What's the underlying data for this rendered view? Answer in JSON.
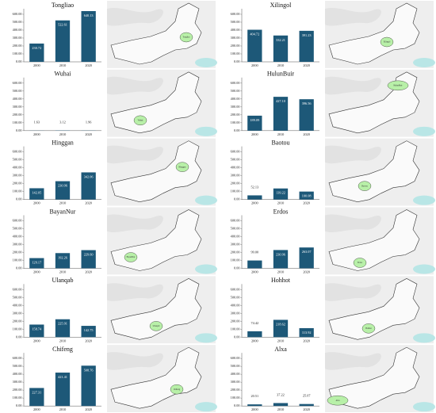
{
  "chart_data": [
    {
      "type": "bar",
      "title": "Tongliao",
      "categories": [
        "2000",
        "2010",
        "2020"
      ],
      "values": [
        230.72,
        522.61,
        640.13
      ],
      "value_labels": [
        "230.72",
        "522.61",
        "640.13"
      ],
      "color": "#1d5878",
      "ylim": [
        0,
        650
      ],
      "yticks": [
        {
          "value": 0,
          "label": "0.00"
        },
        {
          "value": 100,
          "label": "100.00"
        },
        {
          "value": 200,
          "label": "200.00"
        },
        {
          "value": 300,
          "label": "300.00"
        },
        {
          "value": 400,
          "label": "400.00"
        },
        {
          "value": 500,
          "label": "500.00"
        },
        {
          "value": 600,
          "label": "600.00"
        }
      ]
    },
    {
      "type": "bar",
      "title": "Xilingol",
      "categories": [
        "2000",
        "2010",
        "2020"
      ],
      "values": [
        404.72,
        332.21,
        391.23
      ],
      "value_labels": [
        "404.72",
        "332.21",
        "391.23"
      ],
      "color": "#1d5878",
      "ylim": [
        0,
        650
      ],
      "yticks": [
        {
          "value": 0,
          "label": "0.00"
        },
        {
          "value": 100,
          "label": "100.00"
        },
        {
          "value": 200,
          "label": "200.00"
        },
        {
          "value": 300,
          "label": "300.00"
        },
        {
          "value": 400,
          "label": "400.00"
        },
        {
          "value": 500,
          "label": "500.00"
        },
        {
          "value": 600,
          "label": "600.00"
        }
      ]
    },
    {
      "type": "bar",
      "title": "Wuhai",
      "categories": [
        "2000",
        "2010",
        "2020"
      ],
      "values": [
        1.63,
        3.12,
        1.96
      ],
      "value_labels": [
        "1.63",
        "3.12",
        "1.96"
      ],
      "color": "#1d5878",
      "ylim": [
        0,
        650
      ],
      "yticks": [
        {
          "value": 0,
          "label": "0.00"
        },
        {
          "value": 100,
          "label": "100.00"
        },
        {
          "value": 200,
          "label": "200.00"
        },
        {
          "value": 300,
          "label": "300.00"
        },
        {
          "value": 400,
          "label": "400.00"
        },
        {
          "value": 500,
          "label": "500.00"
        },
        {
          "value": 600,
          "label": "600.00"
        }
      ]
    },
    {
      "type": "bar",
      "title": "HulunBuir",
      "categories": [
        "2000",
        "2010",
        "2020"
      ],
      "values": [
        189.09,
        427.1,
        396.56
      ],
      "value_labels": [
        "189.09",
        "427.10",
        "396.56"
      ],
      "color": "#1d5878",
      "ylim": [
        0,
        650
      ],
      "yticks": [
        {
          "value": 0,
          "label": "0.00"
        },
        {
          "value": 100,
          "label": "100.00"
        },
        {
          "value": 200,
          "label": "200.00"
        },
        {
          "value": 300,
          "label": "300.00"
        },
        {
          "value": 400,
          "label": "400.00"
        },
        {
          "value": 500,
          "label": "500.00"
        },
        {
          "value": 600,
          "label": "600.00"
        }
      ]
    },
    {
      "type": "bar",
      "title": "Hinggan",
      "categories": [
        "2000",
        "2010",
        "2020"
      ],
      "values": [
        142.05,
        230.96,
        342.06
      ],
      "value_labels": [
        "142.05",
        "230.96",
        "342.06"
      ],
      "color": "#1d5878",
      "ylim": [
        0,
        650
      ],
      "yticks": [
        {
          "value": 0,
          "label": "0.00"
        },
        {
          "value": 100,
          "label": "100.00"
        },
        {
          "value": 200,
          "label": "200.00"
        },
        {
          "value": 300,
          "label": "300.00"
        },
        {
          "value": 400,
          "label": "400.00"
        },
        {
          "value": 500,
          "label": "500.00"
        },
        {
          "value": 600,
          "label": "600.00"
        }
      ]
    },
    {
      "type": "bar",
      "title": "Baotou",
      "categories": [
        "2000",
        "2010",
        "2020"
      ],
      "values": [
        52.13,
        139.22,
        100.08
      ],
      "value_labels": [
        "52.13",
        "139.22",
        "100.08"
      ],
      "color": "#1d5878",
      "ylim": [
        0,
        650
      ],
      "yticks": [
        {
          "value": 0,
          "label": "0.00"
        },
        {
          "value": 100,
          "label": "100.00"
        },
        {
          "value": 200,
          "label": "200.00"
        },
        {
          "value": 300,
          "label": "300.00"
        },
        {
          "value": 400,
          "label": "400.00"
        },
        {
          "value": 500,
          "label": "500.00"
        },
        {
          "value": 600,
          "label": "600.00"
        }
      ]
    },
    {
      "type": "bar",
      "title": "BayanNur",
      "categories": [
        "2000",
        "2010",
        "2020"
      ],
      "values": [
        129.17,
        192.26,
        229.6
      ],
      "value_labels": [
        "129.17",
        "192.26",
        "229.60"
      ],
      "color": "#1d5878",
      "ylim": [
        0,
        650
      ],
      "yticks": [
        {
          "value": 0,
          "label": "0.00"
        },
        {
          "value": 100,
          "label": "100.00"
        },
        {
          "value": 200,
          "label": "200.00"
        },
        {
          "value": 300,
          "label": "300.00"
        },
        {
          "value": 400,
          "label": "400.00"
        },
        {
          "value": 500,
          "label": "500.00"
        },
        {
          "value": 600,
          "label": "600.00"
        }
      ]
    },
    {
      "type": "bar",
      "title": "Erdos",
      "categories": [
        "2000",
        "2010",
        "2020"
      ],
      "values": [
        99,
        230.96,
        263.07
      ],
      "value_labels": [
        "99.00",
        "230.96",
        "263.07"
      ],
      "color": "#1d5878",
      "ylim": [
        0,
        650
      ],
      "yticks": [
        {
          "value": 0,
          "label": "0.00"
        },
        {
          "value": 100,
          "label": "100.00"
        },
        {
          "value": 200,
          "label": "200.00"
        },
        {
          "value": 300,
          "label": "300.00"
        },
        {
          "value": 400,
          "label": "400.00"
        },
        {
          "value": 500,
          "label": "500.00"
        },
        {
          "value": 600,
          "label": "600.00"
        }
      ]
    },
    {
      "type": "bar",
      "title": "Ulanqab",
      "categories": [
        "2000",
        "2010",
        "2020"
      ],
      "values": [
        158.74,
        225.91,
        142.75
      ],
      "value_labels": [
        "158.74",
        "225.91",
        "142.75"
      ],
      "color": "#1d5878",
      "ylim": [
        0,
        650
      ],
      "yticks": [
        {
          "value": 0,
          "label": "0.00"
        },
        {
          "value": 100,
          "label": "100.00"
        },
        {
          "value": 200,
          "label": "200.00"
        },
        {
          "value": 300,
          "label": "300.00"
        },
        {
          "value": 400,
          "label": "400.00"
        },
        {
          "value": 500,
          "label": "500.00"
        },
        {
          "value": 600,
          "label": "600.00"
        }
      ]
    },
    {
      "type": "bar",
      "title": "Hohhot",
      "categories": [
        "2000",
        "2010",
        "2020"
      ],
      "values": [
        74.42,
        218.62,
        113.92
      ],
      "value_labels": [
        "74.42",
        "218.62",
        "113.92"
      ],
      "color": "#1d5878",
      "ylim": [
        0,
        650
      ],
      "yticks": [
        {
          "value": 0,
          "label": "0.00"
        },
        {
          "value": 100,
          "label": "100.00"
        },
        {
          "value": 200,
          "label": "200.00"
        },
        {
          "value": 300,
          "label": "300.00"
        },
        {
          "value": 400,
          "label": "400.00"
        },
        {
          "value": 500,
          "label": "500.00"
        },
        {
          "value": 600,
          "label": "600.00"
        }
      ]
    },
    {
      "type": "bar",
      "title": "Chifeng",
      "categories": [
        "2000",
        "2010",
        "2020"
      ],
      "values": [
        227.31,
        421.41,
        508.76
      ],
      "value_labels": [
        "227.31",
        "421.41",
        "508.76"
      ],
      "color": "#1d5878",
      "ylim": [
        0,
        650
      ],
      "yticks": [
        {
          "value": 0,
          "label": "0.00"
        },
        {
          "value": 100,
          "label": "100.00"
        },
        {
          "value": 200,
          "label": "200.00"
        },
        {
          "value": 300,
          "label": "300.00"
        },
        {
          "value": 400,
          "label": "400.00"
        },
        {
          "value": 500,
          "label": "500.00"
        },
        {
          "value": 600,
          "label": "600.00"
        }
      ]
    },
    {
      "type": "bar",
      "title": "Alxa",
      "categories": [
        "2000",
        "2010",
        "2020"
      ],
      "values": [
        20.51,
        37.22,
        25.07
      ],
      "value_labels": [
        "20.51",
        "37.22",
        "25.07"
      ],
      "color": "#1d5878",
      "ylim": [
        0,
        650
      ],
      "yticks": [
        {
          "value": 0,
          "label": "0.00"
        },
        {
          "value": 100,
          "label": "100.00"
        },
        {
          "value": 200,
          "label": "200.00"
        },
        {
          "value": 300,
          "label": "300.00"
        },
        {
          "value": 400,
          "label": "400.00"
        },
        {
          "value": 500,
          "label": "500.00"
        },
        {
          "value": 600,
          "label": "600.00"
        }
      ]
    }
  ]
}
